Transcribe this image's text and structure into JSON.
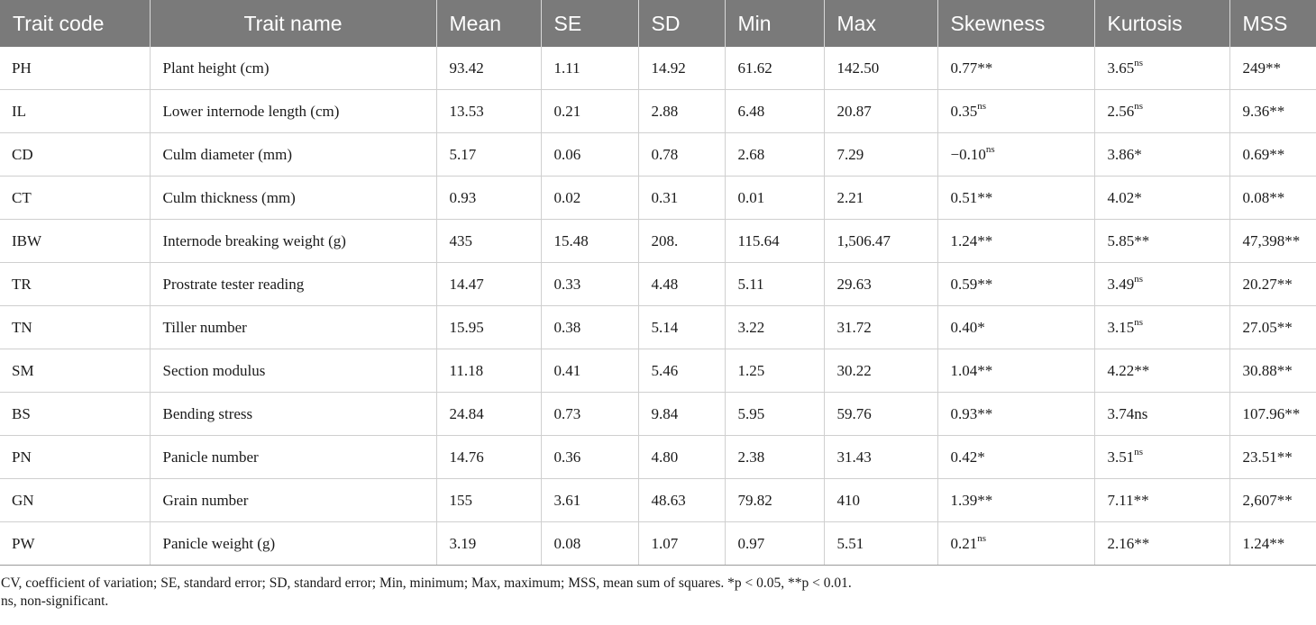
{
  "table": {
    "columns": [
      "Trait code",
      "Trait name",
      "Mean",
      "SE",
      "SD",
      "Min",
      "Max",
      "Skewness",
      "Kurtosis",
      "MSS"
    ],
    "rows": [
      {
        "code": "PH",
        "name": "Plant height (cm)",
        "mean": "93.42",
        "se": "1.11",
        "sd": "14.92",
        "min": "61.62",
        "max": "142.50",
        "skew": "0.77",
        "skew_sig": "**",
        "skew_sup": "",
        "kurt": "3.65",
        "kurt_sig": "",
        "kurt_sup": "ns",
        "mss": "249",
        "mss_sig": "**"
      },
      {
        "code": "IL",
        "name": "Lower internode length (cm)",
        "mean": "13.53",
        "se": "0.21",
        "sd": "2.88",
        "min": "6.48",
        "max": "20.87",
        "skew": "0.35",
        "skew_sig": "",
        "skew_sup": "ns",
        "kurt": "2.56",
        "kurt_sig": "",
        "kurt_sup": "ns",
        "mss": "9.36",
        "mss_sig": "**"
      },
      {
        "code": "CD",
        "name": "Culm diameter (mm)",
        "mean": "5.17",
        "se": "0.06",
        "sd": "0.78",
        "min": "2.68",
        "max": "7.29",
        "skew": "−0.10",
        "skew_sig": "",
        "skew_sup": "ns",
        "kurt": "3.86",
        "kurt_sig": "*",
        "kurt_sup": "",
        "mss": "0.69",
        "mss_sig": "**"
      },
      {
        "code": "CT",
        "name": "Culm thickness (mm)",
        "mean": "0.93",
        "se": "0.02",
        "sd": "0.31",
        "min": "0.01",
        "max": "2.21",
        "skew": "0.51",
        "skew_sig": "**",
        "skew_sup": "",
        "kurt": "4.02",
        "kurt_sig": "*",
        "kurt_sup": "",
        "mss": "0.08",
        "mss_sig": "**"
      },
      {
        "code": "IBW",
        "name": "Internode breaking weight (g)",
        "mean": "435",
        "se": "15.48",
        "sd": "208.",
        "min": "115.64",
        "max": "1,506.47",
        "skew": "1.24",
        "skew_sig": "**",
        "skew_sup": "",
        "kurt": "5.85",
        "kurt_sig": "**",
        "kurt_sup": "",
        "mss": "47,398",
        "mss_sig": "**"
      },
      {
        "code": "TR",
        "name": "Prostrate tester reading",
        "mean": "14.47",
        "se": "0.33",
        "sd": "4.48",
        "min": "5.11",
        "max": "29.63",
        "skew": "0.59",
        "skew_sig": "**",
        "skew_sup": "",
        "kurt": "3.49",
        "kurt_sig": "",
        "kurt_sup": "ns",
        "mss": "20.27",
        "mss_sig": "**"
      },
      {
        "code": "TN",
        "name": "Tiller number",
        "mean": "15.95",
        "se": "0.38",
        "sd": "5.14",
        "min": "3.22",
        "max": "31.72",
        "skew": "0.40",
        "skew_sig": "*",
        "skew_sup": "",
        "kurt": "3.15",
        "kurt_sig": "",
        "kurt_sup": "ns",
        "mss": "27.05",
        "mss_sig": "**"
      },
      {
        "code": "SM",
        "name": "Section modulus",
        "mean": "11.18",
        "se": "0.41",
        "sd": "5.46",
        "min": "1.25",
        "max": "30.22",
        "skew": "1.04",
        "skew_sig": "**",
        "skew_sup": "",
        "kurt": "4.22",
        "kurt_sig": "**",
        "kurt_sup": "",
        "mss": "30.88",
        "mss_sig": "**"
      },
      {
        "code": "BS",
        "name": "Bending stress",
        "mean": "24.84",
        "se": "0.73",
        "sd": "9.84",
        "min": "5.95",
        "max": "59.76",
        "skew": "0.93",
        "skew_sig": "**",
        "skew_sup": "",
        "kurt": "3.74ns",
        "kurt_sig": "",
        "kurt_sup": "",
        "mss": "107.96",
        "mss_sig": "**"
      },
      {
        "code": "PN",
        "name": "Panicle number",
        "mean": "14.76",
        "se": "0.36",
        "sd": "4.80",
        "min": "2.38",
        "max": "31.43",
        "skew": "0.42",
        "skew_sig": "*",
        "skew_sup": "",
        "kurt": "3.51",
        "kurt_sig": "",
        "kurt_sup": "ns",
        "mss": "23.51",
        "mss_sig": "**"
      },
      {
        "code": "GN",
        "name": "Grain number",
        "mean": "155",
        "se": "3.61",
        "sd": "48.63",
        "min": "79.82",
        "max": "410",
        "skew": "1.39",
        "skew_sig": "**",
        "skew_sup": "",
        "kurt": "7.11",
        "kurt_sig": "**",
        "kurt_sup": "",
        "mss": "2,607",
        "mss_sig": "**"
      },
      {
        "code": "PW",
        "name": "Panicle weight (g)",
        "mean": "3.19",
        "se": "0.08",
        "sd": "1.07",
        "min": "0.97",
        "max": "5.51",
        "skew": "0.21",
        "skew_sig": "",
        "skew_sup": "ns",
        "kurt": "2.16",
        "kurt_sig": "**",
        "kurt_sup": "",
        "mss": "1.24",
        "mss_sig": "**"
      }
    ]
  },
  "footnotes": {
    "abbreviations": "CV, coefficient of variation; SE, standard error; SD, standard error; Min, minimum; Max, maximum; MSS, mean sum of squares. *p < 0.05, **p < 0.01.",
    "ns": "ns, non-significant."
  },
  "colors": {
    "header_bg": "#7a7a7a",
    "header_text": "#ffffff"
  }
}
